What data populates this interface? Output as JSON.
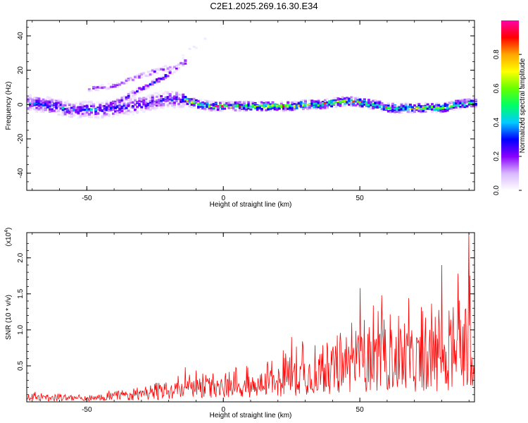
{
  "title": "C2E1.2025.269.16.30.E34",
  "chart_data": [
    {
      "type": "heatmap",
      "xlabel": "Height of straight line (km)",
      "ylabel": "Frequency (Hz)",
      "xlim": [
        -72,
        92
      ],
      "ylim": [
        -50,
        49
      ],
      "xticks": [
        -50,
        0,
        50
      ],
      "yticks": [
        -40,
        -20,
        0,
        20,
        40
      ],
      "colorbar": {
        "label": "Normalized spectral amplitude",
        "range": [
          0,
          1
        ],
        "ticks": [
          0.0,
          0.2,
          0.4,
          0.6,
          0.8
        ],
        "tick_labels": [
          "0.0",
          "0.2",
          "0.4",
          "0.6",
          "0.8"
        ],
        "colormap": [
          "#ffffff",
          "#d9b8ff",
          "#8800ff",
          "#0000ff",
          "#00ccff",
          "#00ff66",
          "#66ff00",
          "#ffff00",
          "#ffa500",
          "#ff0000",
          "#ff00aa"
        ]
      },
      "ridges": [
        {
          "name": "main",
          "points": [
            [
              -72,
              1
            ],
            [
              -67,
              0
            ],
            [
              -62,
              -1
            ],
            [
              -57,
              -3
            ],
            [
              -50,
              -3
            ],
            [
              -45,
              -3
            ],
            [
              -40,
              -2
            ],
            [
              -35,
              -1
            ],
            [
              -30,
              0
            ],
            [
              -25,
              2
            ],
            [
              -20,
              3
            ],
            [
              -15,
              3
            ],
            [
              -12,
              1
            ],
            [
              -5,
              -1
            ],
            [
              0,
              -1
            ],
            [
              5,
              -1
            ],
            [
              10,
              -1
            ],
            [
              15,
              -1
            ],
            [
              20,
              -1
            ],
            [
              25,
              -1
            ],
            [
              30,
              0
            ],
            [
              35,
              0
            ],
            [
              40,
              1
            ],
            [
              45,
              2
            ],
            [
              50,
              1
            ],
            [
              55,
              0
            ],
            [
              60,
              -2
            ],
            [
              65,
              -2
            ],
            [
              70,
              -2
            ],
            [
              75,
              -2
            ],
            [
              80,
              -2
            ],
            [
              85,
              0
            ],
            [
              92,
              1
            ]
          ]
        },
        {
          "name": "branch",
          "points": [
            [
              -42,
              0
            ],
            [
              -37,
              3
            ],
            [
              -32,
              8
            ],
            [
              -27,
              12
            ],
            [
              -22,
              16
            ],
            [
              -18,
              21
            ],
            [
              -14,
              25
            ]
          ]
        },
        {
          "name": "upper",
          "points": [
            [
              -50,
              9
            ],
            [
              -45,
              10
            ],
            [
              -40,
              11
            ],
            [
              -36,
              14
            ],
            [
              -32,
              16
            ],
            [
              -28,
              18
            ],
            [
              -24,
              20
            ],
            [
              -20,
              22
            ]
          ]
        },
        {
          "name": "faint",
          "points": [
            [
              -16,
              27
            ],
            [
              -13,
              31
            ],
            [
              -10,
              35
            ],
            [
              -7,
              39
            ]
          ]
        }
      ]
    },
    {
      "type": "line",
      "xlabel": "Height of straight line (km)",
      "ylabel": "SNR (10 * v/v)",
      "scale_label": "(x10^4)",
      "xlim": [
        -72,
        92
      ],
      "ylim": [
        0,
        2.35
      ],
      "xticks": [
        -50,
        0,
        50
      ],
      "yticks": [
        0.5,
        1.0,
        1.5,
        2.0
      ],
      "series": [
        {
          "color": "#ff0000",
          "envelope_x": [
            -72,
            -60,
            -50,
            -40,
            -30,
            -20,
            -15,
            -10,
            0,
            10,
            20,
            25,
            30,
            40,
            50,
            60,
            70,
            80,
            85,
            88,
            90,
            92
          ],
          "envelope_y": [
            0.1,
            0.08,
            0.07,
            0.12,
            0.15,
            0.22,
            0.25,
            0.3,
            0.3,
            0.35,
            0.45,
            0.55,
            0.6,
            0.7,
            0.85,
            0.95,
            0.9,
            0.95,
            1.0,
            1.2,
            1.5,
            0.7
          ],
          "spikes": [
            [
              -14,
              0.48
            ],
            [
              25,
              0.9
            ],
            [
              50,
              1.58
            ],
            [
              58,
              1.48
            ],
            [
              68,
              1.44
            ],
            [
              80,
              1.9
            ],
            [
              86,
              1.78
            ],
            [
              90,
              2.35
            ]
          ]
        }
      ]
    }
  ]
}
